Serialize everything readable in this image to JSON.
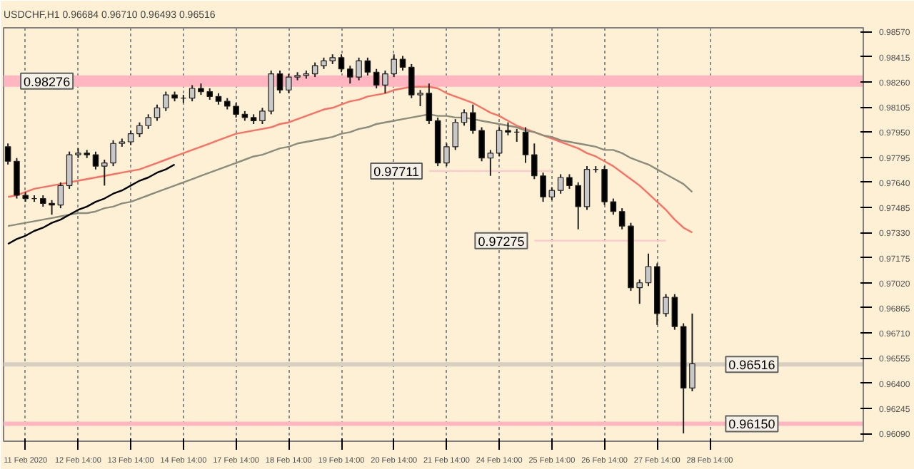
{
  "chart_data": {
    "type": "candlestick",
    "title": "USDCHF,H1  0.96684 0.96710 0.96493 0.96516",
    "categories": [
      null,
      null,
      "11 Feb 2020",
      null,
      null,
      null,
      null,
      null,
      "12 Feb 14:00",
      null,
      null,
      null,
      null,
      null,
      "13 Feb 14:00",
      null,
      null,
      null,
      null,
      null,
      "14 Feb 14:00",
      null,
      null,
      null,
      null,
      null,
      "17 Feb 14:00",
      null,
      null,
      null,
      null,
      null,
      "18 Feb 14:00",
      null,
      null,
      null,
      null,
      null,
      "19 Feb 14:00",
      null,
      null,
      null,
      null,
      null,
      "20 Feb 14:00",
      null,
      null,
      null,
      null,
      null,
      "21 Feb 14:00",
      null,
      null,
      null,
      null,
      null,
      "24 Feb 14:00",
      null,
      null,
      null,
      null,
      null,
      "25 Feb 14:00",
      null,
      null,
      null,
      null,
      null,
      "26 Feb 14:00",
      null,
      null,
      null,
      null,
      null,
      "27 Feb 14:00",
      null,
      null,
      null,
      null,
      null,
      "28 Feb 14:00",
      null,
      null,
      null,
      null,
      null,
      null,
      null,
      null,
      null,
      null,
      null,
      null,
      null,
      null,
      null,
      null,
      null
    ],
    "ohlc": [
      [
        0.9786,
        0.9788,
        0.9775,
        0.9777
      ],
      [
        0.9777,
        0.9779,
        0.9754,
        0.9756
      ],
      [
        0.9756,
        0.9758,
        0.9752,
        0.9754
      ],
      [
        0.9754,
        0.9756,
        0.9752,
        0.9754
      ],
      [
        0.9754,
        0.9756,
        0.9749,
        0.9751
      ],
      [
        0.9751,
        0.9753,
        0.9744,
        0.975
      ],
      [
        0.975,
        0.9764,
        0.9748,
        0.9762
      ],
      [
        0.9762,
        0.9783,
        0.976,
        0.9781
      ],
      [
        0.9781,
        0.9785,
        0.9779,
        0.9782
      ],
      [
        0.9782,
        0.9784,
        0.9779,
        0.9781
      ],
      [
        0.9781,
        0.9783,
        0.9772,
        0.9774
      ],
      [
        0.9774,
        0.9778,
        0.9762,
        0.9776
      ],
      [
        0.9776,
        0.979,
        0.9774,
        0.9788
      ],
      [
        0.9788,
        0.9791,
        0.9786,
        0.9789
      ],
      [
        0.9789,
        0.9796,
        0.9787,
        0.9794
      ],
      [
        0.9794,
        0.9801,
        0.9792,
        0.9799
      ],
      [
        0.9799,
        0.9806,
        0.9797,
        0.9804
      ],
      [
        0.9804,
        0.9812,
        0.9802,
        0.981
      ],
      [
        0.981,
        0.982,
        0.9808,
        0.9818
      ],
      [
        0.9818,
        0.982,
        0.9814,
        0.9816
      ],
      [
        0.9816,
        0.9818,
        0.9813,
        0.9816
      ],
      [
        0.9816,
        0.9824,
        0.9814,
        0.9822
      ],
      [
        0.9822,
        0.9825,
        0.9818,
        0.982
      ],
      [
        0.982,
        0.9822,
        0.9815,
        0.9817
      ],
      [
        0.9817,
        0.9819,
        0.9812,
        0.9814
      ],
      [
        0.9814,
        0.9816,
        0.9809,
        0.9811
      ],
      [
        0.9811,
        0.9813,
        0.9804,
        0.9806
      ],
      [
        0.9806,
        0.9808,
        0.9802,
        0.9804
      ],
      [
        0.9804,
        0.9806,
        0.98,
        0.9802
      ],
      [
        0.9802,
        0.981,
        0.98,
        0.9808
      ],
      [
        0.9808,
        0.9833,
        0.9806,
        0.9831
      ],
      [
        0.9831,
        0.9833,
        0.9819,
        0.9821
      ],
      [
        0.9821,
        0.9831,
        0.9819,
        0.9829
      ],
      [
        0.9829,
        0.9832,
        0.9827,
        0.983
      ],
      [
        0.983,
        0.9833,
        0.9828,
        0.9831
      ],
      [
        0.9831,
        0.9838,
        0.9829,
        0.9836
      ],
      [
        0.9836,
        0.9841,
        0.9834,
        0.9839
      ],
      [
        0.9839,
        0.9843,
        0.9837,
        0.9841
      ],
      [
        0.9841,
        0.9843,
        0.9832,
        0.9834
      ],
      [
        0.9834,
        0.9836,
        0.9825,
        0.9829
      ],
      [
        0.9829,
        0.9841,
        0.9827,
        0.9839
      ],
      [
        0.9839,
        0.9841,
        0.983,
        0.9832
      ],
      [
        0.9832,
        0.9834,
        0.9822,
        0.9824
      ],
      [
        0.9824,
        0.9833,
        0.9819,
        0.9831
      ],
      [
        0.9831,
        0.9843,
        0.9829,
        0.984
      ],
      [
        0.984,
        0.9842,
        0.9833,
        0.9835
      ],
      [
        0.9835,
        0.9837,
        0.9816,
        0.9818
      ],
      [
        0.9818,
        0.9821,
        0.9811,
        0.9819
      ],
      [
        0.9819,
        0.9825,
        0.98,
        0.9802
      ],
      [
        0.9802,
        0.9804,
        0.9774,
        0.9776
      ],
      [
        0.9776,
        0.9788,
        0.9774,
        0.9786
      ],
      [
        0.9786,
        0.9803,
        0.9784,
        0.9801
      ],
      [
        0.9801,
        0.9809,
        0.9799,
        0.9807
      ],
      [
        0.9807,
        0.9812,
        0.9794,
        0.9796
      ],
      [
        0.9796,
        0.9798,
        0.9777,
        0.9779
      ],
      [
        0.9779,
        0.9784,
        0.9768,
        0.9782
      ],
      [
        0.9782,
        0.9798,
        0.978,
        0.9796
      ],
      [
        0.9796,
        0.9801,
        0.9793,
        0.9795
      ],
      [
        0.9795,
        0.9797,
        0.9789,
        0.9795
      ],
      [
        0.9795,
        0.9798,
        0.9776,
        0.9781
      ],
      [
        0.9781,
        0.9788,
        0.9766,
        0.9768
      ],
      [
        0.9768,
        0.977,
        0.9752,
        0.9755
      ],
      [
        0.9755,
        0.9761,
        0.9753,
        0.9759
      ],
      [
        0.9759,
        0.9769,
        0.9757,
        0.9767
      ],
      [
        0.9767,
        0.9769,
        0.976,
        0.9762
      ],
      [
        0.9762,
        0.9764,
        0.9735,
        0.9749
      ],
      [
        0.9749,
        0.9774,
        0.9747,
        0.9772
      ],
      [
        0.9772,
        0.9774,
        0.977,
        0.9772
      ],
      [
        0.9772,
        0.9774,
        0.975,
        0.9752
      ],
      [
        0.9752,
        0.9754,
        0.9744,
        0.9746
      ],
      [
        0.9746,
        0.9748,
        0.9735,
        0.9737
      ],
      [
        0.9737,
        0.9739,
        0.9697,
        0.9699
      ],
      [
        0.9699,
        0.9704,
        0.9689,
        0.9702
      ],
      [
        0.9702,
        0.972,
        0.97,
        0.9712
      ],
      [
        0.9712,
        0.9714,
        0.9676,
        0.9683
      ],
      [
        0.9683,
        0.9695,
        0.9681,
        0.9693
      ],
      [
        0.9693,
        0.9695,
        0.9673,
        0.9675
      ],
      [
        0.9675,
        0.9677,
        0.9609,
        0.9637
      ],
      [
        0.9637,
        0.9683,
        0.9635,
        0.9652
      ],
      null,
      null,
      null,
      null,
      null,
      null,
      null,
      null,
      null,
      null,
      null,
      null,
      null,
      null,
      null,
      null,
      null,
      null,
      null
    ],
    "series": [
      {
        "type": "line",
        "color": "#ff6f61",
        "values": [
          0.9755,
          0.9756,
          0.9758,
          0.976,
          0.9761,
          0.9762,
          0.9763,
          0.9764,
          0.9765,
          0.9766,
          0.9767,
          0.9768,
          0.9769,
          0.977,
          0.9771,
          0.9772,
          0.9774,
          0.9776,
          0.9778,
          0.978,
          0.9782,
          0.9784,
          0.9786,
          0.9788,
          0.979,
          0.9792,
          0.9794,
          0.9795,
          0.9796,
          0.9797,
          0.9798,
          0.98,
          0.9801,
          0.9803,
          0.9805,
          0.9807,
          0.9809,
          0.981,
          0.9812,
          0.9814,
          0.9815,
          0.9817,
          0.9818,
          0.9819,
          0.9821,
          0.9822,
          0.9823,
          0.9823,
          0.9823,
          0.9822,
          0.9819,
          0.9817,
          0.9815,
          0.9813,
          0.981,
          0.9807,
          0.9805,
          0.9802,
          0.9799,
          0.9797,
          0.9795,
          0.9793,
          0.9791,
          0.9789,
          0.9787,
          0.9785,
          0.9782,
          0.978,
          0.9777,
          0.9774,
          0.977,
          0.9766,
          0.9762,
          0.9757,
          0.9752,
          0.9747,
          0.9741,
          0.9736,
          0.9733,
          null,
          null,
          null,
          null,
          null,
          null,
          null,
          null,
          null,
          null,
          null,
          null,
          null,
          null,
          null,
          null,
          null,
          null,
          null
        ]
      },
      {
        "type": "line",
        "color": "#8c8c7c",
        "values": [
          0.9737,
          0.9738,
          0.9739,
          0.974,
          0.9741,
          0.9742,
          0.9743,
          0.9744,
          0.9745,
          0.9745,
          0.9746,
          0.9748,
          0.9749,
          0.9751,
          0.9752,
          0.9754,
          0.9756,
          0.9758,
          0.976,
          0.9762,
          0.9764,
          0.9766,
          0.9768,
          0.977,
          0.9772,
          0.9774,
          0.9776,
          0.9778,
          0.978,
          0.9781,
          0.9783,
          0.9785,
          0.9786,
          0.9788,
          0.9789,
          0.979,
          0.9791,
          0.9792,
          0.9794,
          0.9795,
          0.9797,
          0.9798,
          0.98,
          0.9801,
          0.9802,
          0.9803,
          0.9804,
          0.9805,
          0.9806,
          0.9805,
          0.9805,
          0.9804,
          0.9804,
          0.9803,
          0.9802,
          0.9801,
          0.98,
          0.9799,
          0.9798,
          0.9796,
          0.9795,
          0.9793,
          0.9792,
          0.979,
          0.9789,
          0.9788,
          0.9787,
          0.9786,
          0.9784,
          0.9784,
          0.9782,
          0.9779,
          0.9777,
          0.9775,
          0.9772,
          0.9769,
          0.9766,
          0.9763,
          0.9758,
          null,
          null,
          null,
          null,
          null,
          null,
          null,
          null,
          null,
          null,
          null,
          null,
          null,
          null,
          null,
          null,
          null,
          null,
          null
        ]
      },
      {
        "type": "line",
        "color": "#000000",
        "values": [
          0.9726,
          0.9729,
          0.9731,
          0.9734,
          0.9736,
          0.9739,
          0.9741,
          0.9744,
          0.9747,
          0.9749,
          0.9752,
          0.9754,
          0.9757,
          0.9759,
          0.9762,
          0.9765,
          0.9767,
          0.977,
          0.9772,
          0.9775,
          null,
          null,
          null,
          null,
          null,
          null,
          null,
          null,
          null,
          null,
          null,
          null,
          null,
          null,
          null,
          null,
          null,
          null,
          null,
          null,
          null,
          null,
          null,
          null,
          null,
          null,
          null,
          null,
          null,
          null,
          null,
          null,
          null,
          null,
          null,
          null,
          null,
          null,
          null,
          null,
          null,
          null,
          null,
          null,
          null,
          null,
          null,
          null,
          null,
          null,
          null,
          null,
          null,
          null,
          null,
          null,
          null,
          null,
          null,
          null,
          null,
          null,
          null,
          null,
          null,
          null,
          null,
          null,
          null,
          null,
          null,
          null,
          null,
          null,
          null,
          null,
          null,
          null
        ]
      },
      {
        "type": "line",
        "color": "#ffc8cc",
        "name": "0.97711",
        "values": [
          null,
          null,
          null,
          null,
          null,
          null,
          null,
          null,
          null,
          null,
          null,
          null,
          null,
          null,
          null,
          null,
          null,
          null,
          null,
          null,
          null,
          null,
          null,
          null,
          null,
          null,
          null,
          null,
          null,
          null,
          null,
          null,
          null,
          null,
          null,
          null,
          null,
          null,
          null,
          null,
          null,
          null,
          null,
          null,
          null,
          null,
          null,
          null,
          0.9771,
          0.9771,
          0.9771,
          0.9771,
          0.9771,
          0.9771,
          0.9771,
          0.9771,
          0.9771,
          0.9771,
          0.9771,
          0.9771,
          0.9771,
          0.9771,
          0.9771,
          null,
          null,
          null,
          null,
          null,
          null,
          null,
          null,
          null,
          null,
          null,
          null,
          null,
          null,
          null,
          null,
          null,
          null,
          null,
          null,
          null,
          null,
          null,
          null,
          null,
          null,
          null,
          null,
          null,
          null,
          null,
          null,
          null,
          null,
          null
        ]
      },
      {
        "type": "line",
        "color": "#ffc8cc",
        "name": "0.97275",
        "values": [
          null,
          null,
          null,
          null,
          null,
          null,
          null,
          null,
          null,
          null,
          null,
          null,
          null,
          null,
          null,
          null,
          null,
          null,
          null,
          null,
          null,
          null,
          null,
          null,
          null,
          null,
          null,
          null,
          null,
          null,
          null,
          null,
          null,
          null,
          null,
          null,
          null,
          null,
          null,
          null,
          null,
          null,
          null,
          null,
          null,
          null,
          null,
          null,
          null,
          null,
          null,
          null,
          null,
          null,
          null,
          null,
          null,
          null,
          null,
          null,
          0.9728,
          0.9728,
          0.9728,
          0.9728,
          0.9728,
          0.9728,
          0.9728,
          0.9728,
          0.9728,
          0.9728,
          0.9728,
          0.9728,
          0.9728,
          0.9728,
          0.9728,
          0.9728,
          null,
          null,
          null,
          null,
          null,
          null,
          null,
          null,
          null,
          null,
          null,
          null,
          null,
          null,
          null,
          null,
          null,
          null,
          null,
          null,
          null,
          null
        ]
      }
    ],
    "ylim": [
      0.96042,
      0.98594
    ],
    "yticks": [
      {
        "value": 0.9857,
        "label": "0.98570"
      },
      {
        "value": 0.98415,
        "label": "0.98415"
      },
      {
        "value": 0.9826,
        "label": "0.98260"
      },
      {
        "value": 0.98105,
        "label": "0.98105"
      },
      {
        "value": 0.9795,
        "label": "0.97950"
      },
      {
        "value": 0.97795,
        "label": "0.97795"
      },
      {
        "value": 0.9764,
        "label": "0.97640"
      },
      {
        "value": 0.97485,
        "label": "0.97485"
      },
      {
        "value": 0.9733,
        "label": "0.97330"
      },
      {
        "value": 0.97175,
        "label": "0.97175"
      },
      {
        "value": 0.9702,
        "label": "0.97020"
      },
      {
        "value": 0.96865,
        "label": "0.96865"
      },
      {
        "value": 0.9671,
        "label": "0.96710"
      },
      {
        "value": 0.96555,
        "label": "0.96555"
      },
      {
        "value": 0.964,
        "label": "0.96400"
      },
      {
        "value": 0.96245,
        "label": "0.96245"
      },
      {
        "value": 0.9609,
        "label": "0.96090"
      }
    ],
    "grid": "x",
    "bands": [
      {
        "axis": "y",
        "from": 0.9823,
        "to": 0.983,
        "color": "#ffb6c1",
        "label": "0.98276"
      }
    ],
    "ref_lines": [
      {
        "axis": "y",
        "value": 0.9615,
        "color": "#ffb6c1",
        "label": "0.96150"
      },
      {
        "axis": "y",
        "value": 0.96516,
        "color": "#d8cfc0",
        "label": "0.96516"
      }
    ]
  }
}
